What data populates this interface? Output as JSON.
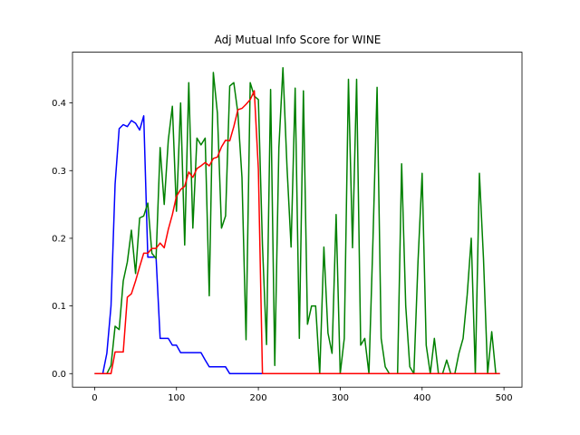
{
  "chart_data": {
    "type": "line",
    "title": "Adj Mutual Info Score for WINE",
    "xlabel": "",
    "ylabel": "",
    "xlim": [
      -27,
      522
    ],
    "ylim": [
      -0.02,
      0.475
    ],
    "xticks": [
      0,
      100,
      200,
      300,
      400,
      500
    ],
    "yticks": [
      0.0,
      0.1,
      0.2,
      0.3,
      0.4
    ],
    "xtick_labels": [
      "0",
      "100",
      "200",
      "300",
      "400",
      "500"
    ],
    "ytick_labels": [
      "0.0",
      "0.1",
      "0.2",
      "0.3",
      "0.4"
    ],
    "grid": false,
    "series": [
      {
        "name": "blue",
        "color": "#0000ff",
        "x": [
          0,
          5,
          10,
          15,
          20,
          25,
          30,
          35,
          40,
          45,
          50,
          55,
          60,
          65,
          70,
          75,
          80,
          85,
          90,
          95,
          100,
          105,
          110,
          115,
          120,
          125,
          130,
          135,
          140,
          145,
          150,
          155,
          160,
          165,
          170,
          175,
          180,
          185,
          190,
          195,
          200,
          495
        ],
        "y": [
          0,
          0,
          0,
          0.03,
          0.1,
          0.28,
          0.362,
          0.368,
          0.365,
          0.374,
          0.37,
          0.36,
          0.381,
          0.172,
          0.172,
          0.172,
          0.052,
          0.052,
          0.052,
          0.042,
          0.042,
          0.031,
          0.031,
          0.031,
          0.031,
          0.031,
          0.031,
          0.02,
          0.01,
          0.01,
          0.01,
          0.01,
          0.01,
          0,
          0,
          0,
          0,
          0,
          0,
          0,
          0,
          0
        ]
      },
      {
        "name": "green",
        "color": "#008000",
        "x": [
          0,
          5,
          10,
          15,
          20,
          25,
          30,
          35,
          40,
          45,
          50,
          55,
          60,
          65,
          70,
          75,
          80,
          85,
          90,
          95,
          100,
          105,
          110,
          115,
          120,
          125,
          130,
          135,
          140,
          145,
          150,
          155,
          160,
          165,
          170,
          175,
          180,
          185,
          190,
          195,
          200,
          205,
          210,
          215,
          220,
          225,
          230,
          235,
          240,
          245,
          250,
          255,
          260,
          265,
          270,
          275,
          280,
          285,
          290,
          295,
          300,
          305,
          310,
          315,
          320,
          325,
          330,
          335,
          340,
          345,
          350,
          355,
          360,
          365,
          370,
          375,
          380,
          385,
          390,
          395,
          400,
          405,
          410,
          415,
          420,
          425,
          430,
          435,
          440,
          445,
          450,
          455,
          460,
          465,
          470,
          475,
          480,
          485,
          490,
          495
        ],
        "y": [
          0,
          0,
          0,
          0,
          0.012,
          0.07,
          0.065,
          0.137,
          0.165,
          0.212,
          0.148,
          0.23,
          0.233,
          0.252,
          0.178,
          0.17,
          0.334,
          0.25,
          0.345,
          0.395,
          0.24,
          0.4,
          0.19,
          0.43,
          0.215,
          0.348,
          0.338,
          0.348,
          0.115,
          0.445,
          0.385,
          0.215,
          0.233,
          0.425,
          0.43,
          0.385,
          0.29,
          0.05,
          0.43,
          0.41,
          0.405,
          0.19,
          0.043,
          0.42,
          0.012,
          0.333,
          0.452,
          0.305,
          0.187,
          0.422,
          0.052,
          0.418,
          0.073,
          0.1,
          0.1,
          0,
          0.187,
          0.06,
          0.03,
          0.235,
          0,
          0.052,
          0.435,
          0.186,
          0.435,
          0.042,
          0.052,
          0,
          0.2,
          0.423,
          0.052,
          0.01,
          0,
          0,
          0,
          0.31,
          0.1,
          0.01,
          0,
          0.167,
          0.296,
          0.042,
          0,
          0.052,
          0,
          0,
          0.02,
          0,
          0,
          0.03,
          0.052,
          0.116,
          0.2,
          0,
          0.296,
          0.17,
          0,
          0.062,
          0,
          0
        ]
      },
      {
        "name": "red",
        "color": "#ff0000",
        "x": [
          0,
          5,
          10,
          15,
          20,
          25,
          30,
          35,
          40,
          45,
          50,
          55,
          60,
          65,
          70,
          75,
          80,
          85,
          90,
          95,
          100,
          105,
          110,
          115,
          120,
          125,
          130,
          135,
          140,
          145,
          150,
          155,
          160,
          165,
          170,
          175,
          180,
          185,
          190,
          195,
          200,
          205,
          495
        ],
        "y": [
          0,
          0,
          0,
          0,
          0,
          0.032,
          0.032,
          0.032,
          0.113,
          0.118,
          0.137,
          0.158,
          0.178,
          0.178,
          0.185,
          0.185,
          0.193,
          0.186,
          0.213,
          0.235,
          0.262,
          0.272,
          0.277,
          0.298,
          0.29,
          0.303,
          0.307,
          0.312,
          0.307,
          0.318,
          0.32,
          0.335,
          0.345,
          0.344,
          0.365,
          0.39,
          0.392,
          0.398,
          0.405,
          0.418,
          0.302,
          0,
          0
        ]
      }
    ]
  }
}
